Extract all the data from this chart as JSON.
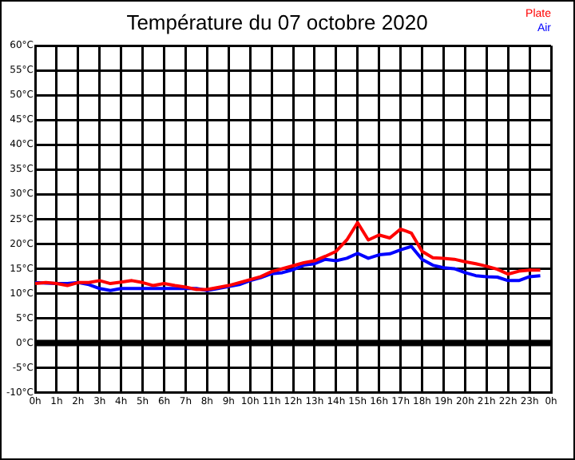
{
  "chart_data": {
    "type": "line",
    "title": "Température du 07 octobre 2020",
    "xlim": [
      "2020-10-07T00:00",
      "2020-10-08T00:00"
    ],
    "xticks": [
      {
        "value": "2020-10-07T00:00",
        "label": "0h"
      },
      {
        "value": "2020-10-07T01:00",
        "label": "1h"
      },
      {
        "value": "2020-10-07T02:00",
        "label": "2h"
      },
      {
        "value": "2020-10-07T03:00",
        "label": "3h"
      },
      {
        "value": "2020-10-07T04:00",
        "label": "4h"
      },
      {
        "value": "2020-10-07T05:00",
        "label": "5h"
      },
      {
        "value": "2020-10-07T06:00",
        "label": "6h"
      },
      {
        "value": "2020-10-07T07:00",
        "label": "7h"
      },
      {
        "value": "2020-10-07T08:00",
        "label": "8h"
      },
      {
        "value": "2020-10-07T09:00",
        "label": "9h"
      },
      {
        "value": "2020-10-07T10:00",
        "label": "10h"
      },
      {
        "value": "2020-10-07T11:00",
        "label": "11h"
      },
      {
        "value": "2020-10-07T12:00",
        "label": "12h"
      },
      {
        "value": "2020-10-07T13:00",
        "label": "13h"
      },
      {
        "value": "2020-10-07T14:00",
        "label": "14h"
      },
      {
        "value": "2020-10-07T15:00",
        "label": "15h"
      },
      {
        "value": "2020-10-07T16:00",
        "label": "16h"
      },
      {
        "value": "2020-10-07T17:00",
        "label": "17h"
      },
      {
        "value": "2020-10-07T18:00",
        "label": "18h"
      },
      {
        "value": "2020-10-07T19:00",
        "label": "19h"
      },
      {
        "value": "2020-10-07T20:00",
        "label": "20h"
      },
      {
        "value": "2020-10-07T21:00",
        "label": "21h"
      },
      {
        "value": "2020-10-07T22:00",
        "label": "22h"
      },
      {
        "value": "2020-10-07T23:00",
        "label": "23h"
      },
      {
        "value": "2020-10-08T00:00",
        "label": "0h"
      }
    ],
    "ylim": [
      -10,
      60
    ],
    "yticks": [
      {
        "value": -10,
        "label": "-10°C"
      },
      {
        "value": -5,
        "label": "-5°C"
      },
      {
        "value": 0,
        "label": "0°C"
      },
      {
        "value": 5,
        "label": "5°C"
      },
      {
        "value": 10,
        "label": "10°C"
      },
      {
        "value": 15,
        "label": "15°C"
      },
      {
        "value": 20,
        "label": "20°C"
      },
      {
        "value": 25,
        "label": "25°C"
      },
      {
        "value": 30,
        "label": "30°C"
      },
      {
        "value": 35,
        "label": "35°C"
      },
      {
        "value": 40,
        "label": "40°C"
      },
      {
        "value": 45,
        "label": "45°C"
      },
      {
        "value": 50,
        "label": "50°C"
      },
      {
        "value": 55,
        "label": "55°C"
      },
      {
        "value": 60,
        "label": "60°C"
      }
    ],
    "grid": true,
    "legend": "top right",
    "marker": "none",
    "line_style": "solid",
    "ref_lines": [
      {
        "axis": "y",
        "value": 0,
        "color": "#000000"
      }
    ],
    "x": [
      "2020-10-07T00:00",
      "2020-10-07T00:30",
      "2020-10-07T01:00",
      "2020-10-07T01:30",
      "2020-10-07T02:00",
      "2020-10-07T02:30",
      "2020-10-07T03:00",
      "2020-10-07T03:30",
      "2020-10-07T04:00",
      "2020-10-07T04:30",
      "2020-10-07T05:00",
      "2020-10-07T05:30",
      "2020-10-07T06:00",
      "2020-10-07T06:30",
      "2020-10-07T07:00",
      "2020-10-07T07:30",
      "2020-10-07T08:00",
      "2020-10-07T08:30",
      "2020-10-07T09:00",
      "2020-10-07T09:30",
      "2020-10-07T10:00",
      "2020-10-07T10:30",
      "2020-10-07T11:00",
      "2020-10-07T11:30",
      "2020-10-07T12:00",
      "2020-10-07T12:30",
      "2020-10-07T13:00",
      "2020-10-07T13:30",
      "2020-10-07T14:00",
      "2020-10-07T14:30",
      "2020-10-07T15:00",
      "2020-10-07T15:30",
      "2020-10-07T16:00",
      "2020-10-07T16:30",
      "2020-10-07T17:00",
      "2020-10-07T17:30",
      "2020-10-07T18:00",
      "2020-10-07T18:30",
      "2020-10-07T19:00",
      "2020-10-07T19:30",
      "2020-10-07T20:00",
      "2020-10-07T20:30",
      "2020-10-07T21:00",
      "2020-10-07T21:30",
      "2020-10-07T22:00",
      "2020-10-07T22:30",
      "2020-10-07T23:00",
      "2020-10-07T23:30"
    ],
    "series": [
      {
        "name": "Plate",
        "color": "#ff0000",
        "values": [
          12,
          12.2,
          12,
          11.6,
          12.2,
          12.2,
          12.6,
          12,
          12.3,
          12.6,
          12.2,
          11.6,
          12,
          11.6,
          11.3,
          10.8,
          10.8,
          11.2,
          11.6,
          12.2,
          12.8,
          13.4,
          14.4,
          15,
          15.6,
          16.2,
          16.6,
          17.5,
          18.5,
          20.8,
          24.3,
          20.8,
          21.8,
          21.2,
          23,
          22.2,
          18.5,
          17.2,
          17.1,
          16.9,
          16.4,
          16,
          15.5,
          14.9,
          13.9,
          14.5,
          14.7,
          14.7
        ]
      },
      {
        "name": "Air",
        "color": "#0000ff",
        "values": [
          12.2,
          12.1,
          12,
          12,
          12.2,
          11.8,
          11,
          10.6,
          11,
          11,
          11,
          11,
          11,
          11,
          11,
          11,
          10.6,
          11,
          11.4,
          11.8,
          12.6,
          13.2,
          14,
          14.2,
          14.8,
          15.7,
          16,
          16.9,
          16.6,
          17.1,
          18.1,
          17.1,
          17.8,
          18,
          18.8,
          19.5,
          16.9,
          15.7,
          15.2,
          15,
          14.2,
          13.6,
          13.4,
          13.3,
          12.6,
          12.6,
          13.4,
          13.6
        ]
      }
    ]
  }
}
